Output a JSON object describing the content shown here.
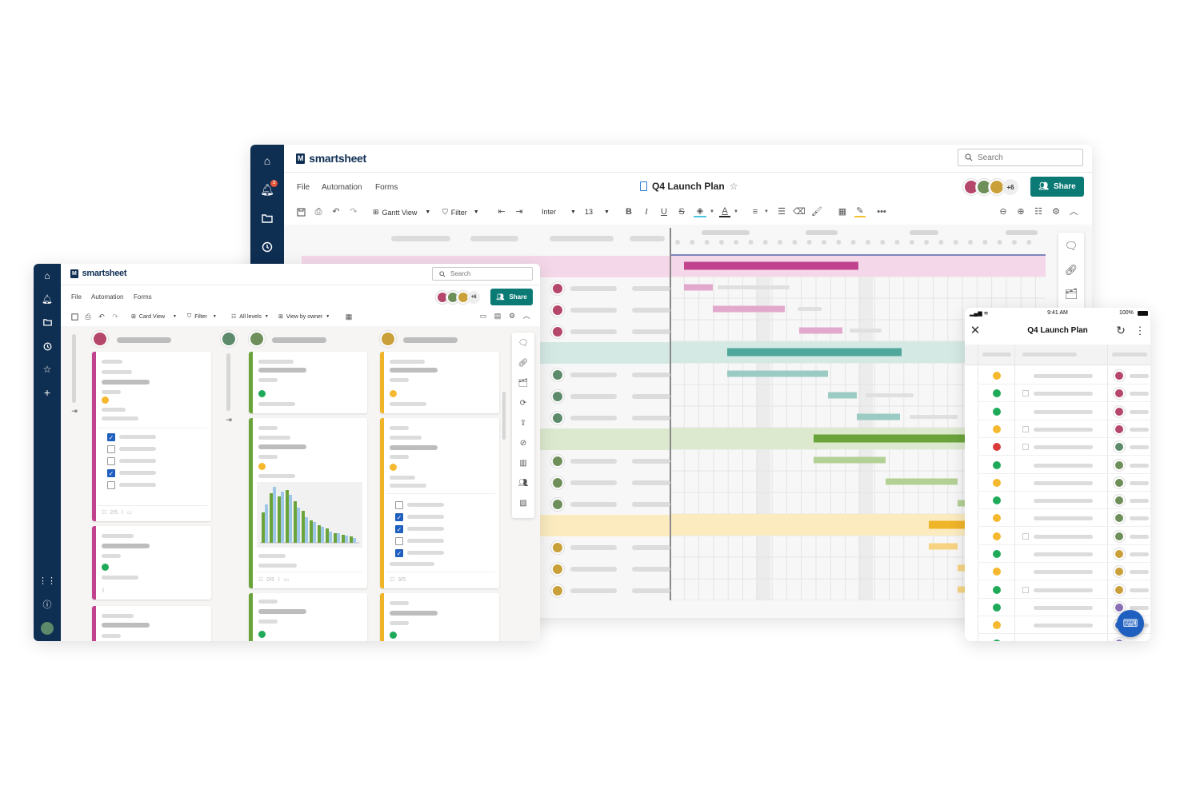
{
  "brand": "smartsheet",
  "colors": {
    "navy": "#0e2e52",
    "teal": "#0b7a75",
    "magenta": "#c2438d",
    "teal_bar": "#4fa89b",
    "green": "#6aa33a",
    "yellow": "#f0b429",
    "status_yellow": "#f5b82e",
    "status_green": "#1faa5a",
    "status_red": "#d93b3b"
  },
  "desktop": {
    "search_placeholder": "Search",
    "menu": [
      "File",
      "Automation",
      "Forms"
    ],
    "sheet_title": "Q4 Launch Plan",
    "collaborators_more": "+6",
    "share_label": "Share",
    "toolbar": {
      "view_label": "Gantt View",
      "filter_label": "Filter",
      "font_label": "Inter",
      "size_label": "13",
      "bold": "B",
      "italic": "I",
      "underline": "U",
      "strike": "S"
    },
    "nav_icons": [
      "home-icon",
      "bell-icon",
      "folder-icon",
      "clock-icon"
    ],
    "notification_count": "3"
  },
  "board": {
    "search_placeholder": "Search",
    "menu": [
      "File",
      "Automation",
      "Forms"
    ],
    "collaborators_more": "+6",
    "share_label": "Share",
    "toolbar": {
      "view_label": "Card View",
      "filter_label": "Filter",
      "levels_label": "All levels",
      "group_label": "View by owner"
    },
    "counts": [
      "2/5",
      "0/5",
      "3/5"
    ],
    "bar_chart": {
      "green": [
        38,
        62,
        58,
        66,
        52,
        40,
        28,
        22,
        18,
        12,
        10,
        8
      ],
      "blue": [
        48,
        70,
        64,
        60,
        44,
        32,
        26,
        20,
        14,
        12,
        9,
        6
      ]
    }
  },
  "mobile": {
    "time": "9:41 AM",
    "battery": "100%",
    "title": "Q4 Launch Plan",
    "statuses": [
      "yellow",
      "green",
      "green",
      "yellow",
      "red",
      "green",
      "yellow",
      "green",
      "yellow",
      "yellow",
      "green",
      "yellow",
      "green",
      "green",
      "yellow",
      "green"
    ]
  }
}
